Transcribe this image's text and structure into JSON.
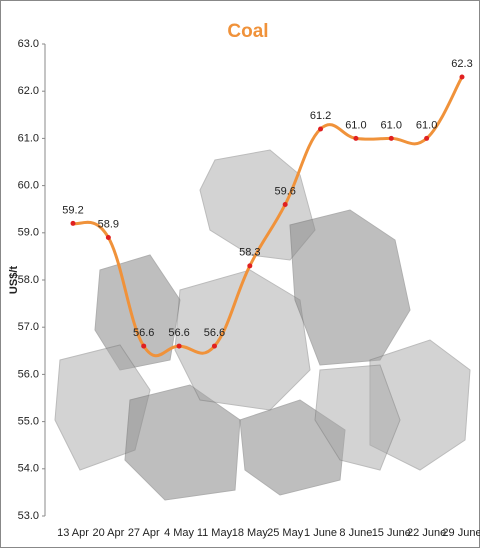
{
  "chart_data": {
    "type": "line",
    "title": "Coal",
    "y_label": "US$/t",
    "categories": [
      "13 Apr",
      "20 Apr",
      "27 Apr",
      "4 May",
      "11 May",
      "18 May",
      "25 May",
      "1 June",
      "8 June",
      "15 June",
      "22 June",
      "29 June"
    ],
    "series": [
      {
        "name": "Coal",
        "color": "#f0923a",
        "values": [
          59.2,
          58.9,
          56.6,
          56.6,
          56.6,
          58.3,
          59.6,
          61.2,
          61.0,
          61.0,
          61.0,
          62.3
        ],
        "value_labels": [
          "59.2",
          "58.9",
          "56.6",
          "56.6",
          "56.6",
          "58.3",
          "59.6",
          "61.2",
          "61.0",
          "61.0",
          "61.0",
          "62.3"
        ]
      }
    ],
    "marker_color": "#e02020",
    "ylim": [
      53,
      63
    ],
    "yticks": [
      {
        "value": 53,
        "label": "53.0"
      },
      {
        "value": 54,
        "label": "54.0"
      },
      {
        "value": 55,
        "label": "55.0"
      },
      {
        "value": 56,
        "label": "56.0"
      },
      {
        "value": 57,
        "label": "57.0"
      },
      {
        "value": 58,
        "label": "58.0"
      },
      {
        "value": 59,
        "label": "59.0"
      },
      {
        "value": 60,
        "label": "60.0"
      },
      {
        "value": 61,
        "label": "61.0"
      },
      {
        "value": 62,
        "label": "62.0"
      },
      {
        "value": 63,
        "label": "63.0"
      }
    ],
    "grid": false
  }
}
